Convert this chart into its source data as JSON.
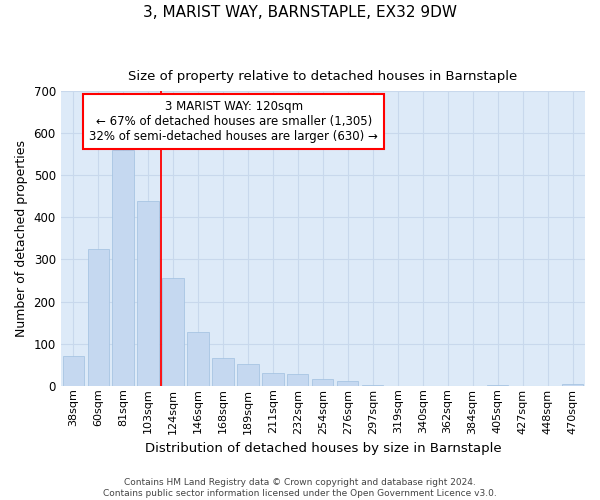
{
  "title": "3, MARIST WAY, BARNSTAPLE, EX32 9DW",
  "subtitle": "Size of property relative to detached houses in Barnstaple",
  "xlabel": "Distribution of detached houses by size in Barnstaple",
  "ylabel": "Number of detached properties",
  "footer_line1": "Contains HM Land Registry data © Crown copyright and database right 2024.",
  "footer_line2": "Contains public sector information licensed under the Open Government Licence v3.0.",
  "categories": [
    "38sqm",
    "60sqm",
    "81sqm",
    "103sqm",
    "124sqm",
    "146sqm",
    "168sqm",
    "189sqm",
    "211sqm",
    "232sqm",
    "254sqm",
    "276sqm",
    "297sqm",
    "319sqm",
    "340sqm",
    "362sqm",
    "384sqm",
    "405sqm",
    "427sqm",
    "448sqm",
    "470sqm"
  ],
  "values": [
    70,
    325,
    560,
    440,
    255,
    128,
    65,
    52,
    30,
    28,
    16,
    12,
    3,
    0,
    0,
    0,
    0,
    1,
    0,
    0,
    4
  ],
  "bar_color": "#c5d8f0",
  "bar_edgecolor": "#a0c0e0",
  "bar_linewidth": 0.5,
  "grid_color": "#c8d8ec",
  "background_color": "#ddeaf8",
  "fig_background": "#ffffff",
  "annotation_text": "3 MARIST WAY: 120sqm\n← 67% of detached houses are smaller (1,305)\n32% of semi-detached houses are larger (630) →",
  "red_line_x": 3.5,
  "ylim": [
    0,
    700
  ],
  "yticks": [
    0,
    100,
    200,
    300,
    400,
    500,
    600,
    700
  ]
}
